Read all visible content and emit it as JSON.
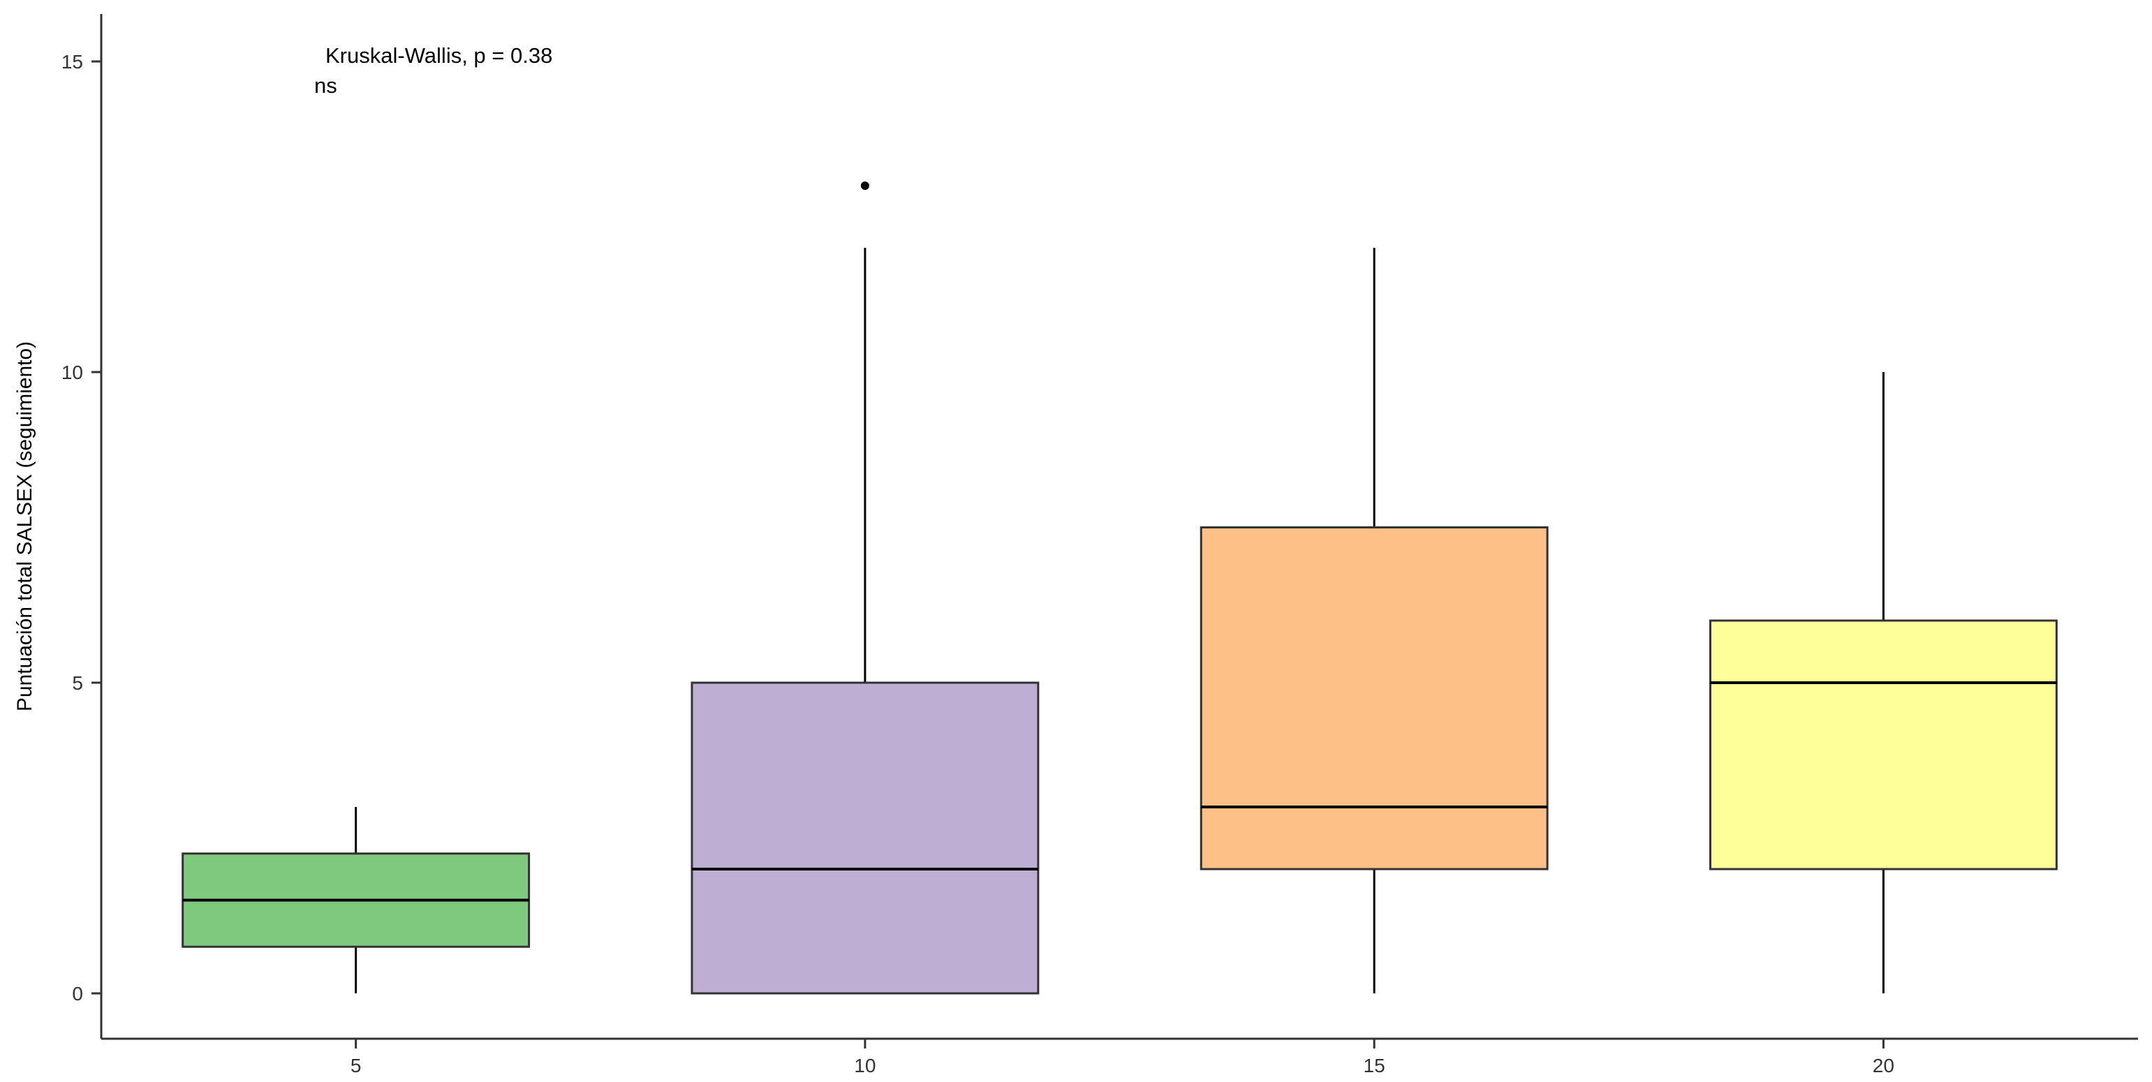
{
  "chart_data": {
    "type": "boxplot",
    "title": "",
    "xlabel": "",
    "ylabel": "Puntuación total SALSEX (seguimiento)",
    "ylim": [
      -0.7,
      15.8
    ],
    "yticks": [
      0,
      5,
      10,
      15
    ],
    "grid": false,
    "annotation": {
      "test": "Kruskal-Wallis, p = 0.38",
      "significance": "ns"
    },
    "categories": [
      "5",
      "10",
      "15",
      "20"
    ],
    "boxes": [
      {
        "category": "5",
        "min": 0,
        "q1": 0.75,
        "median": 1.5,
        "q3": 2.25,
        "max": 3,
        "outliers": [],
        "fill": "#7fc97f"
      },
      {
        "category": "10",
        "min": 0,
        "q1": 0,
        "median": 2,
        "q3": 5,
        "max": 12,
        "outliers": [
          13
        ],
        "fill": "#beaed4"
      },
      {
        "category": "15",
        "min": 0,
        "q1": 2,
        "median": 3,
        "q3": 7.5,
        "max": 12,
        "outliers": [],
        "fill": "#fdc086"
      },
      {
        "category": "20",
        "min": 0,
        "q1": 2,
        "median": 5,
        "q3": 6,
        "max": 10,
        "outliers": [],
        "fill": "#ffff99"
      }
    ]
  }
}
